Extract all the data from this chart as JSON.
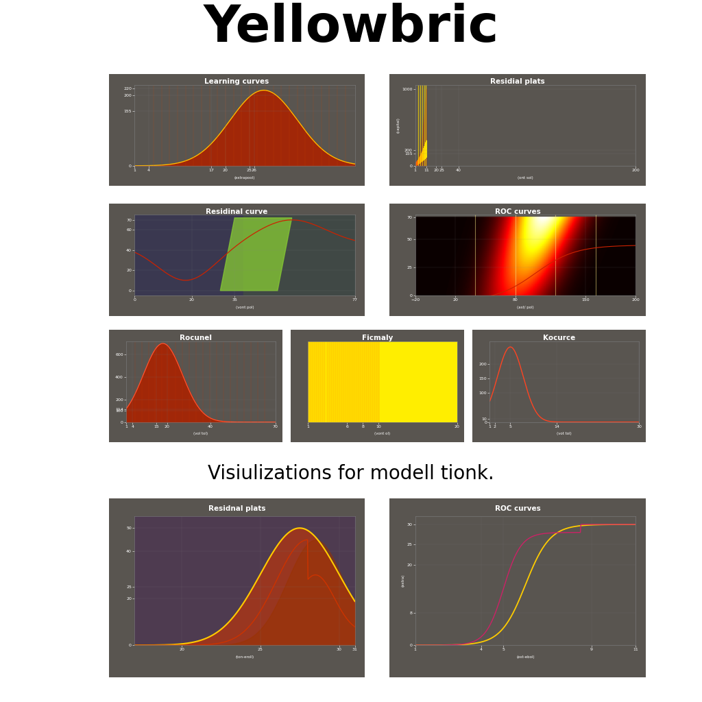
{
  "title": "Yellowbric",
  "subtitle": "Visiulizations for modell tionk.",
  "bg_color": "#ffffff",
  "panel_bg": "#595550",
  "title_fontsize": 54,
  "subtitle_fontsize": 20,
  "panel_title_fontsize": 7.5,
  "tick_fontsize": 4.5,
  "xlabel_fontsize": 4,
  "row1_titles": [
    "Learning curves",
    "Residial plats"
  ],
  "row2_titles": [
    "Residinal curve",
    "ROC curves"
  ],
  "row3_titles": [
    "Rocunel",
    "Ficmaly",
    "Kocurce"
  ],
  "row4_titles": [
    "Residnal plats",
    "ROC curves"
  ]
}
